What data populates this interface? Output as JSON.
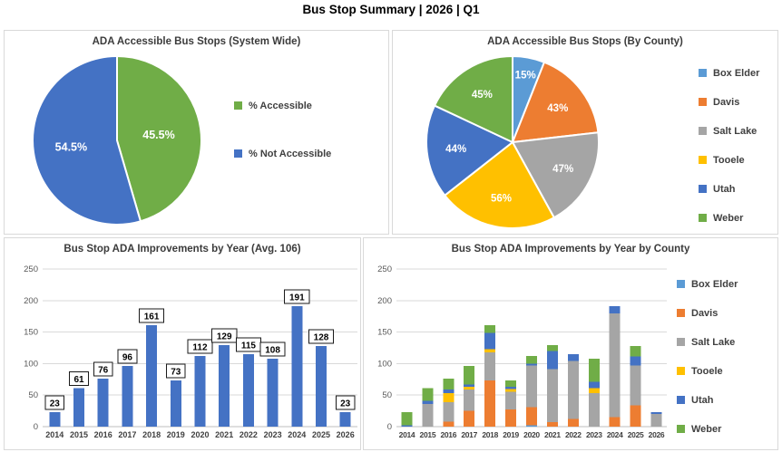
{
  "page_title": "Bus Stop Summary | 2026 | Q1",
  "colors": {
    "box_elder": "#5B9BD5",
    "davis": "#ED7D31",
    "salt_lake": "#A5A5A5",
    "tooele": "#FFC000",
    "utah": "#4472C4",
    "weber": "#70AD47",
    "accessible_green": "#70AD47",
    "not_accessible_blue": "#4472C4",
    "bar_blue": "#4472C4",
    "gridline": "#D9D9D9",
    "axis_line": "#BFBFBF"
  },
  "chart_data": [
    {
      "type": "pie",
      "title": "ADA Accessible Bus Stops (System Wide)",
      "labels": [
        "% Accessible",
        "% Not Accessible"
      ],
      "values": [
        45.5,
        54.5
      ],
      "slice_labels": [
        "45.5%",
        "54.5%"
      ],
      "colors": [
        "#70AD47",
        "#4472C4"
      ],
      "legend_position": "right",
      "start_angle": "top",
      "direction": "clockwise"
    },
    {
      "type": "pie",
      "title": "ADA Accessible Bus Stops (By County)",
      "labels": [
        "Box Elder",
        "Davis",
        "Salt Lake",
        "Tooele",
        "Utah",
        "Weber"
      ],
      "values": [
        15,
        43,
        47,
        56,
        44,
        45
      ],
      "slice_labels": [
        "15%",
        "43%",
        "47%",
        "56%",
        "44%",
        "45%"
      ],
      "colors": [
        "#5B9BD5",
        "#ED7D31",
        "#A5A5A5",
        "#FFC000",
        "#4472C4",
        "#70AD47"
      ],
      "legend_position": "right",
      "start_angle": "top",
      "direction": "clockwise",
      "note": "slice size proportional to each county's % accessible value"
    },
    {
      "type": "bar",
      "title": "Bus Stop ADA Improvements by Year (Avg. 106)",
      "categories": [
        "2014",
        "2015",
        "2016",
        "2017",
        "2018",
        "2019",
        "2020",
        "2021",
        "2022",
        "2023",
        "2024",
        "2025",
        "2026"
      ],
      "values": [
        23,
        61,
        76,
        96,
        161,
        73,
        112,
        129,
        115,
        108,
        191,
        128,
        23
      ],
      "data_labels": [
        "23",
        "61",
        "76",
        "96",
        "161",
        "73",
        "112",
        "129",
        "115",
        "108",
        "191",
        "128",
        "23"
      ],
      "bar_color": "#4472C4",
      "ylim": [
        0,
        250
      ],
      "yticks": [
        0,
        50,
        100,
        150,
        200,
        250
      ],
      "grid": true,
      "legend_position": "none"
    },
    {
      "type": "stacked_bar",
      "title": "Bus Stop ADA Improvements by Year by County",
      "categories": [
        "2014",
        "2015",
        "2016",
        "2017",
        "2018",
        "2019",
        "2020",
        "2021",
        "2022",
        "2023",
        "2024",
        "2025",
        "2026"
      ],
      "series": [
        {
          "name": "Box Elder",
          "color": "#5B9BD5",
          "values": [
            0,
            0,
            0,
            0,
            0,
            0,
            2,
            0,
            0,
            0,
            0,
            0,
            0
          ]
        },
        {
          "name": "Davis",
          "color": "#ED7D31",
          "values": [
            0,
            0,
            8,
            25,
            73,
            27,
            29,
            7,
            12,
            0,
            15,
            34,
            0
          ]
        },
        {
          "name": "Salt Lake",
          "color": "#A5A5A5",
          "values": [
            0,
            36,
            31,
            34,
            45,
            28,
            66,
            84,
            92,
            53,
            165,
            63,
            20
          ]
        },
        {
          "name": "Tooele",
          "color": "#FFC000",
          "values": [
            0,
            0,
            14,
            4,
            5,
            5,
            0,
            0,
            0,
            8,
            0,
            0,
            0
          ]
        },
        {
          "name": "Utah",
          "color": "#4472C4",
          "values": [
            2,
            5,
            6,
            4,
            26,
            3,
            3,
            29,
            11,
            10,
            11,
            14,
            3
          ]
        },
        {
          "name": "Weber",
          "color": "#70AD47",
          "values": [
            21,
            20,
            17,
            29,
            12,
            10,
            12,
            9,
            0,
            37,
            0,
            17,
            0
          ]
        }
      ],
      "totals": [
        23,
        61,
        76,
        96,
        161,
        73,
        112,
        129,
        115,
        108,
        191,
        128,
        23
      ],
      "ylim": [
        0,
        250
      ],
      "yticks": [
        0,
        50,
        100,
        150,
        200,
        250
      ],
      "grid": true,
      "legend_position": "right"
    }
  ]
}
